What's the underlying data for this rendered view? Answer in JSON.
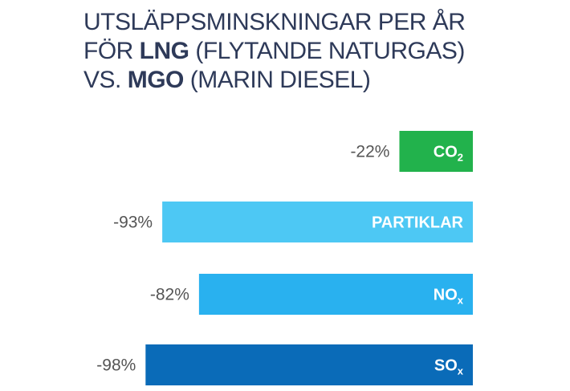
{
  "title": {
    "line1": "UTSLÄPPSMINSKNINGAR PER ÅR",
    "line2_prefix": "FÖR ",
    "line2_bold": "LNG",
    "line2_rest": " (FLYTANDE NATURGAS)",
    "line3_prefix": "VS. ",
    "line3_bold": "MGO",
    "line3_rest": " (MARIN DIESEL)"
  },
  "chart_data": {
    "type": "bar",
    "orientation": "horizontal",
    "categories": [
      {
        "label": "CO",
        "subscript": "2"
      },
      {
        "label": "PARTIKLAR",
        "subscript": ""
      },
      {
        "label": "NO",
        "subscript": "x"
      },
      {
        "label": "SO",
        "subscript": "x"
      }
    ],
    "values": [
      -22,
      -93,
      -82,
      -98
    ],
    "value_labels": [
      "-22%",
      "-93%",
      "-82%",
      "-98%"
    ],
    "colors": [
      "#22b24c",
      "#4dc8f4",
      "#29b1ef",
      "#0a6bb8"
    ],
    "xlim": [
      -100,
      0
    ],
    "grid": false,
    "legend": "none"
  }
}
